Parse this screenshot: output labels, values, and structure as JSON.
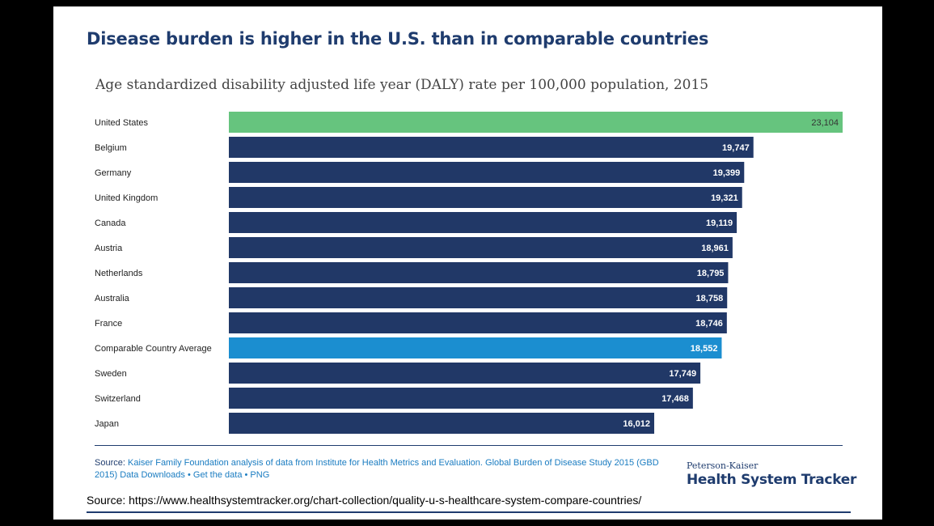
{
  "title": "Disease burden is higher in the U.S. than in comparable countries",
  "colors": {
    "us": "#66c47e",
    "average": "#1b8ed0",
    "default": "#213867"
  },
  "chart_data": {
    "type": "bar",
    "orientation": "horizontal",
    "title": "Age standardized disability adjusted life year (DALY) rate per 100,000 population, 2015",
    "xlabel": "",
    "ylabel": "",
    "xlim": [
      0,
      23104
    ],
    "categories": [
      "United States",
      "Belgium",
      "Germany",
      "United Kingdom",
      "Canada",
      "Austria",
      "Netherlands",
      "Australia",
      "France",
      "Comparable Country Average",
      "Sweden",
      "Switzerland",
      "Japan"
    ],
    "values": [
      23104,
      19747,
      19399,
      19321,
      19119,
      18961,
      18795,
      18758,
      18746,
      18552,
      17749,
      17468,
      16012
    ],
    "value_labels": [
      "23,104",
      "19,747",
      "19,399",
      "19,321",
      "19,119",
      "18,961",
      "18,795",
      "18,758",
      "18,746",
      "18,552",
      "17,749",
      "17,468",
      "16,012"
    ],
    "bar_colors": [
      "us",
      "default",
      "default",
      "default",
      "default",
      "default",
      "default",
      "default",
      "default",
      "average",
      "default",
      "default",
      "default"
    ]
  },
  "source": {
    "label": "Source:",
    "text": "Kaiser Family Foundation analysis of data from Institute for Health Metrics and Evaluation. Global Burden of Disease Study 2015 (GBD 2015) Data Downloads",
    "sep1": "•",
    "get_data": "Get the data",
    "sep2": "•",
    "png": "PNG"
  },
  "logo": {
    "top": "Peterson-Kaiser",
    "main": "Health System Tracker"
  },
  "footer": {
    "url_text": "Source: https://www.healthsystemtracker.org/chart-collection/quality-u-s-healthcare-system-compare-countries/"
  }
}
